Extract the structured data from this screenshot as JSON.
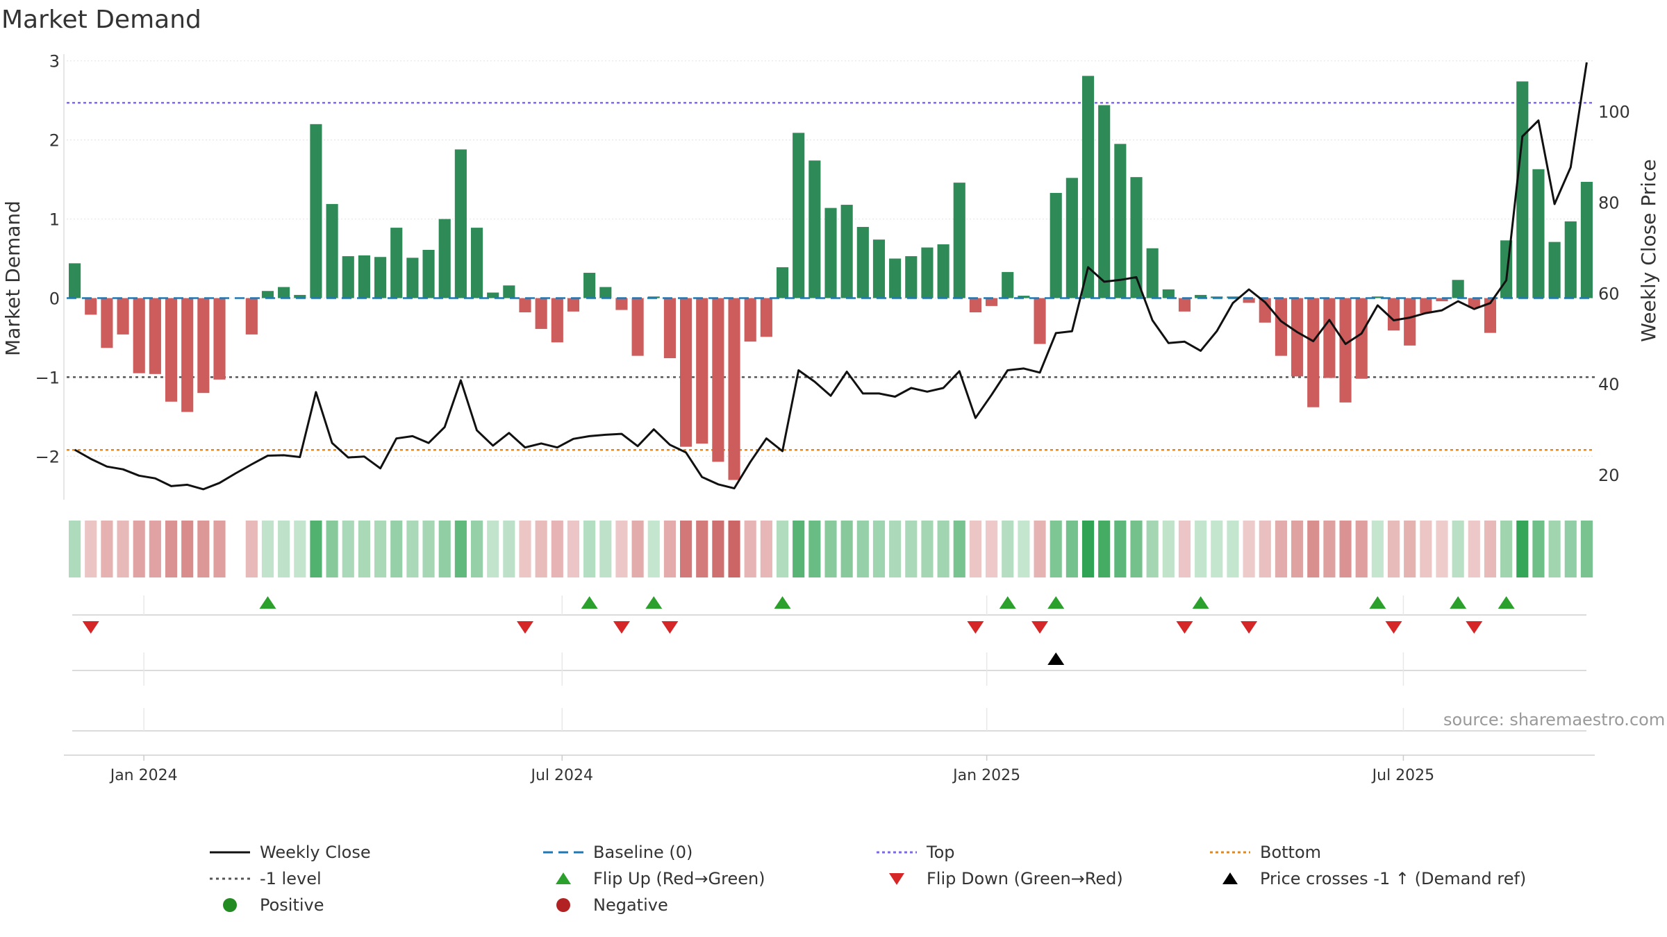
{
  "chart_data": {
    "type": "bar+line",
    "title": "Market Demand",
    "ylabel": "Market Demand",
    "y2label": "Weekly Close Price",
    "ylim": [
      -2.55,
      3.05
    ],
    "y2lim": [
      14.5,
      112
    ],
    "yticks": [
      3,
      2,
      1,
      0,
      -1,
      -2
    ],
    "ytick_labels": [
      "3",
      "2",
      "1",
      "0",
      "−1",
      "−2"
    ],
    "y2ticks": [
      100,
      80,
      60,
      40,
      20
    ],
    "xticks": [
      {
        "label": "Jan 2024",
        "index": 4.3
      },
      {
        "label": "Jul 2024",
        "index": 30.3
      },
      {
        "label": "Jan 2025",
        "index": 56.7
      },
      {
        "label": "Jul 2025",
        "index": 82.6
      }
    ],
    "weeks": 95,
    "demand": [
      0.44,
      -0.21,
      -0.63,
      -0.46,
      -0.95,
      -0.96,
      -1.31,
      -1.44,
      -1.2,
      -1.03,
      0.0,
      -0.46,
      0.09,
      0.14,
      0.04,
      2.2,
      1.19,
      0.53,
      0.54,
      0.52,
      0.89,
      0.51,
      0.61,
      1.0,
      1.88,
      0.89,
      0.07,
      0.16,
      -0.18,
      -0.39,
      -0.56,
      -0.17,
      0.32,
      0.14,
      -0.15,
      -0.73,
      0.02,
      -0.76,
      -1.88,
      -1.84,
      -2.07,
      -2.3,
      -0.55,
      -0.49,
      0.39,
      2.09,
      1.74,
      1.14,
      1.18,
      0.9,
      0.74,
      0.5,
      0.53,
      0.64,
      0.68,
      1.46,
      -0.18,
      -0.1,
      0.33,
      0.03,
      -0.58,
      1.33,
      1.52,
      2.81,
      2.44,
      1.95,
      1.53,
      0.63,
      0.11,
      -0.17,
      0.04,
      0.02,
      0.02,
      -0.06,
      -0.31,
      -0.73,
      -0.99,
      -1.38,
      -1.01,
      -1.32,
      -1.02,
      0.02,
      -0.41,
      -0.6,
      -0.19,
      -0.04,
      0.23,
      -0.12,
      -0.44,
      0.73,
      2.74,
      1.63,
      0.71,
      0.97,
      1.47
    ],
    "close": [
      25.5,
      23.5,
      21.8,
      21.2,
      19.8,
      19.2,
      17.5,
      17.8,
      16.8,
      18.2,
      20.3,
      22.3,
      24.2,
      24.3,
      23.9,
      38.2,
      27.0,
      23.8,
      24.0,
      21.4,
      28.0,
      28.5,
      27.0,
      30.5,
      40.8,
      29.8,
      26.4,
      29.2,
      26.0,
      26.9,
      26.0,
      27.9,
      28.5,
      28.8,
      29.0,
      26.3,
      30.0,
      26.6,
      24.9,
      19.5,
      17.9,
      17.0,
      22.8,
      28.0,
      25.2,
      43.0,
      40.5,
      37.4,
      42.7,
      37.9,
      37.9,
      37.2,
      39.1,
      38.3,
      39.1,
      42.8,
      32.5,
      37.6,
      43.0,
      43.4,
      42.5,
      51.2,
      51.6,
      65.7,
      62.5,
      62.9,
      63.5,
      54.0,
      49.0,
      49.3,
      47.3,
      51.6,
      57.8,
      60.8,
      58.0,
      53.8,
      51.4,
      49.4,
      54.1,
      48.8,
      51.1,
      57.3,
      54.0,
      54.6,
      55.6,
      56.2,
      58.2,
      56.5,
      57.8,
      62.8,
      94.5,
      98.0,
      79.6,
      87.7,
      110.8
    ],
    "top_level": 2.47,
    "minus_one_level": -1,
    "bottom_level": -1.92,
    "flip_up_indices": [
      12,
      32,
      36,
      44,
      58,
      61,
      70,
      81,
      86,
      89
    ],
    "flip_down_indices": [
      1,
      28,
      34,
      37,
      56,
      60,
      69,
      73,
      82,
      87
    ],
    "price_cross_indices": [
      61
    ],
    "legend_position": "bottom"
  },
  "legend": {
    "items": [
      {
        "label": "Weekly Close"
      },
      {
        "label": "Baseline (0)"
      },
      {
        "label": "Top"
      },
      {
        "label": "Bottom"
      },
      {
        "label": "-1 level"
      },
      {
        "label": "Flip Up (Red→Green)"
      },
      {
        "label": "Flip Down (Green→Red)"
      },
      {
        "label": "Price crosses -1 ↑ (Demand ref)"
      },
      {
        "label": "Positive"
      },
      {
        "label": "Negative"
      }
    ]
  },
  "source": "source: sharemaestro.com",
  "colors": {
    "positive": "#2e8b57",
    "negative": "#cd5c5c",
    "close": "#111111",
    "baseline": "#1f77b4",
    "top": "#7b68ee",
    "bottom": "#e08a1e",
    "minus_one": "#555555",
    "flip_up": "#2ca02c",
    "flip_down": "#d62728",
    "cross": "#000000",
    "positive_dot": "#228b22",
    "negative_dot": "#b22222"
  }
}
